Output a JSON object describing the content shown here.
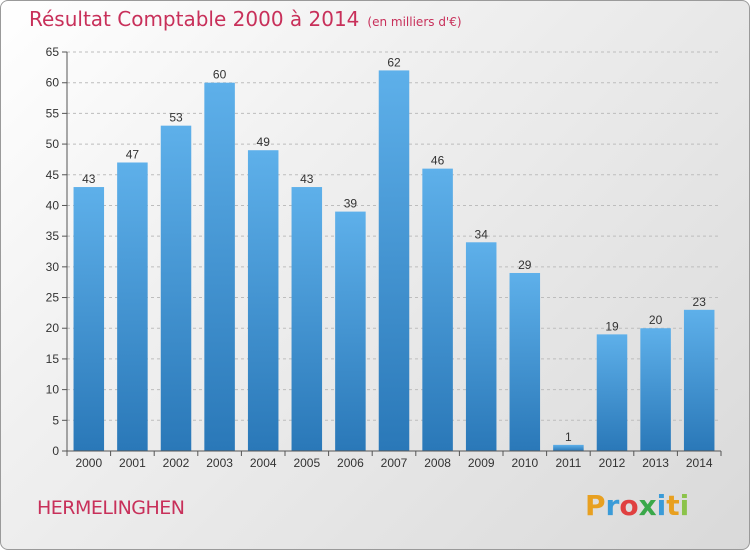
{
  "header": {
    "title": "Résultat Comptable 2000 à 2014",
    "subtitle": "(en milliers d'€)"
  },
  "footer": {
    "town": "HERMELINGHEN",
    "logo_letters": [
      "P",
      "r",
      "o",
      "x",
      "i",
      "t",
      "i"
    ],
    "logo_colors": [
      "#e8a020",
      "#3a9bd8",
      "#e04040",
      "#3aa84a",
      "#3a9bd8",
      "#e8a020",
      "#8bc34a"
    ]
  },
  "chart_data": {
    "type": "bar",
    "categories": [
      "2000",
      "2001",
      "2002",
      "2003",
      "2004",
      "2005",
      "2006",
      "2007",
      "2008",
      "2009",
      "2010",
      "2011",
      "2012",
      "2013",
      "2014"
    ],
    "values": [
      43,
      47,
      53,
      60,
      49,
      43,
      39,
      62,
      46,
      34,
      29,
      1,
      19,
      20,
      23
    ],
    "title": "Résultat Comptable 2000 à 2014",
    "ylim": [
      0,
      65
    ],
    "yticks": [
      0,
      5,
      10,
      15,
      20,
      25,
      30,
      35,
      40,
      45,
      50,
      55,
      60,
      65
    ],
    "grid": "horizontal dashed",
    "bar_color_top": "#5eb0ea",
    "bar_color_bottom": "#2a78b8"
  }
}
